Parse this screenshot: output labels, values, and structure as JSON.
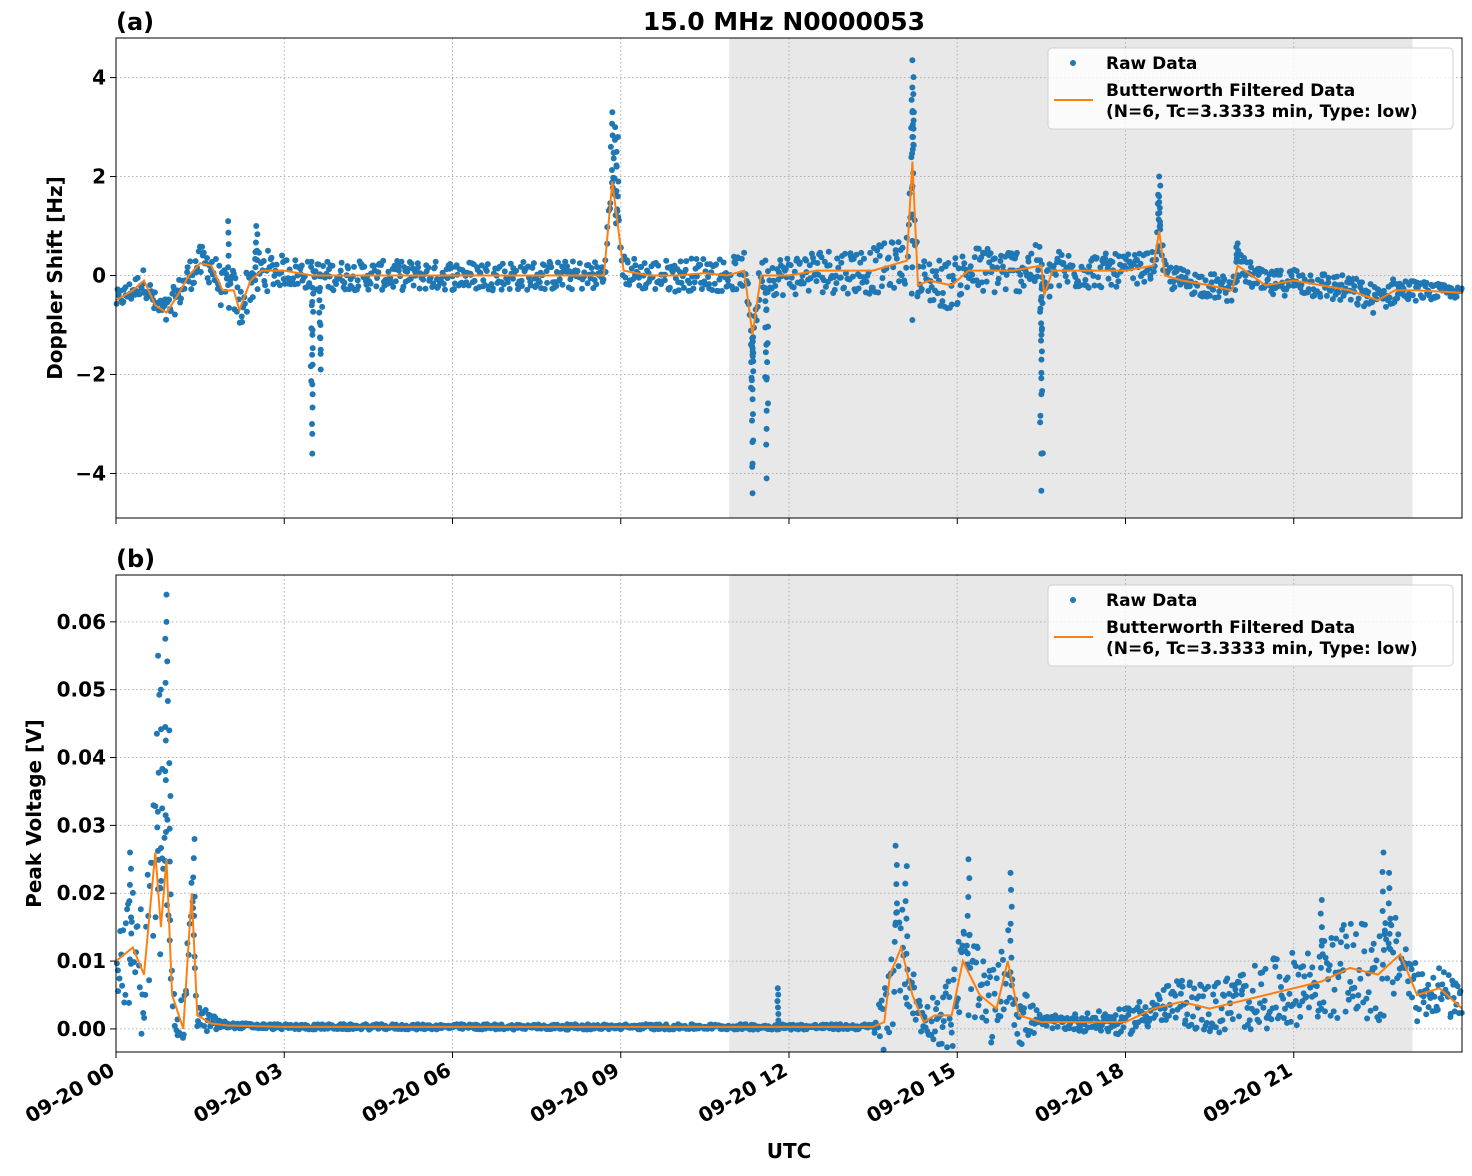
{
  "title": "15.0 MHz N0000053",
  "colors": {
    "raw": "#1f77b4",
    "filtered": "#ff7f0e",
    "shade": "#e8e8e8"
  },
  "chart_data": [
    {
      "type": "scatter+line",
      "panel_label": "(a)",
      "ylabel": "Doppler Shift [Hz]",
      "xlabel": "",
      "ylim": [
        -4.9,
        4.8
      ],
      "yticks": [
        -4,
        -2,
        0,
        2,
        4
      ],
      "ytick_labels": [
        "−4",
        "−2",
        "0",
        "2",
        "4"
      ],
      "grid": true,
      "legend": {
        "placement": "top-right",
        "entries": [
          "Raw Data",
          "Butterworth Filtered Data\n(N=6, Tc=3.3333 min, Type: low)"
        ],
        "line1": "Butterworth Filtered Data",
        "line2": "(N=6, Tc=3.3333 min, Type: low)"
      },
      "shaded_interval": [
        "10:56",
        "23:07"
      ],
      "series": [
        {
          "name": "Butterworth Filtered Data",
          "kind": "line",
          "points": [
            [
              "00:00",
              -0.5
            ],
            [
              "00:18",
              -0.3
            ],
            [
              "00:30",
              -0.1
            ],
            [
              "00:42",
              -0.6
            ],
            [
              "00:54",
              -0.75
            ],
            [
              "01:06",
              -0.4
            ],
            [
              "01:18",
              0.0
            ],
            [
              "01:30",
              0.25
            ],
            [
              "01:42",
              0.2
            ],
            [
              "01:54",
              -0.3
            ],
            [
              "02:06",
              -0.3
            ],
            [
              "02:12",
              -0.7
            ],
            [
              "02:24",
              -0.1
            ],
            [
              "02:36",
              0.1
            ],
            [
              "03:00",
              0.1
            ],
            [
              "03:30",
              0.0
            ],
            [
              "04:00",
              0.0
            ],
            [
              "05:00",
              0.0
            ],
            [
              "06:00",
              0.0
            ],
            [
              "07:00",
              0.0
            ],
            [
              "08:00",
              0.0
            ],
            [
              "08:42",
              0.0
            ],
            [
              "08:51",
              1.9
            ],
            [
              "08:57",
              1.0
            ],
            [
              "09:03",
              0.1
            ],
            [
              "09:30",
              0.0
            ],
            [
              "10:00",
              0.0
            ],
            [
              "10:30",
              0.05
            ],
            [
              "10:54",
              0.0
            ],
            [
              "11:12",
              0.1
            ],
            [
              "11:21",
              -1.2
            ],
            [
              "11:30",
              0.0
            ],
            [
              "12:00",
              0.0
            ],
            [
              "12:30",
              0.1
            ],
            [
              "13:00",
              0.1
            ],
            [
              "13:30",
              0.1
            ],
            [
              "13:48",
              0.2
            ],
            [
              "14:06",
              0.3
            ],
            [
              "14:12",
              2.3
            ],
            [
              "14:18",
              -0.2
            ],
            [
              "14:30",
              -0.1
            ],
            [
              "14:54",
              -0.2
            ],
            [
              "15:12",
              0.1
            ],
            [
              "15:30",
              0.1
            ],
            [
              "16:00",
              0.1
            ],
            [
              "16:30",
              0.2
            ],
            [
              "16:33",
              -0.4
            ],
            [
              "16:42",
              0.1
            ],
            [
              "17:00",
              0.1
            ],
            [
              "17:30",
              0.1
            ],
            [
              "18:00",
              0.1
            ],
            [
              "18:30",
              0.2
            ],
            [
              "18:36",
              0.9
            ],
            [
              "18:42",
              0.0
            ],
            [
              "19:00",
              -0.1
            ],
            [
              "19:30",
              -0.2
            ],
            [
              "19:54",
              -0.3
            ],
            [
              "20:00",
              0.2
            ],
            [
              "20:30",
              -0.2
            ],
            [
              "21:00",
              -0.1
            ],
            [
              "21:30",
              -0.2
            ],
            [
              "22:00",
              -0.3
            ],
            [
              "22:30",
              -0.5
            ],
            [
              "22:48",
              -0.3
            ],
            [
              "23:12",
              -0.3
            ],
            [
              "24:00",
              -0.35
            ]
          ]
        },
        {
          "name": "Raw Data",
          "kind": "scatter",
          "spread_about_filtered": [
            [
              "00:00",
              0.2
            ],
            [
              "01:30",
              0.35
            ],
            [
              "02:30",
              0.5
            ],
            [
              "03:00",
              0.3
            ],
            [
              "08:30",
              0.3
            ],
            [
              "11:00",
              0.35
            ],
            [
              "12:30",
              0.45
            ],
            [
              "14:00",
              0.5
            ],
            [
              "15:30",
              0.5
            ],
            [
              "17:00",
              0.4
            ],
            [
              "19:00",
              0.25
            ],
            [
              "22:30",
              0.3
            ],
            [
              "24:00",
              0.1
            ]
          ],
          "outliers": [
            [
              "02:00",
              1.1
            ],
            [
              "02:30",
              1.0
            ],
            [
              "03:30",
              -3.6
            ],
            [
              "03:30",
              -3.2
            ],
            [
              "03:30",
              -2.2
            ],
            [
              "03:39",
              -1.9
            ],
            [
              "03:39",
              -1.5
            ],
            [
              "08:51",
              3.3
            ],
            [
              "08:54",
              3.0
            ],
            [
              "08:57",
              2.8
            ],
            [
              "11:21",
              -4.4
            ],
            [
              "11:21",
              -3.8
            ],
            [
              "11:21",
              -2.3
            ],
            [
              "11:21",
              -1.6
            ],
            [
              "11:36",
              -4.1
            ],
            [
              "11:36",
              -3.1
            ],
            [
              "11:36",
              -2.1
            ],
            [
              "14:12",
              4.35
            ],
            [
              "14:12",
              3.8
            ],
            [
              "14:12",
              3.3
            ],
            [
              "14:12",
              -0.9
            ],
            [
              "16:30",
              -4.35
            ],
            [
              "16:30",
              -3.6
            ],
            [
              "16:30",
              -2.4
            ],
            [
              "16:30",
              -1.2
            ],
            [
              "18:36",
              2.0
            ],
            [
              "18:36",
              1.6
            ],
            [
              "20:00",
              0.65
            ]
          ]
        }
      ]
    },
    {
      "type": "scatter+line",
      "panel_label": "(b)",
      "ylabel": "Peak Voltage [V]",
      "xlabel": "UTC",
      "ylim": [
        -0.0034,
        0.0669
      ],
      "yticks": [
        0.0,
        0.01,
        0.02,
        0.03,
        0.04,
        0.05,
        0.06
      ],
      "ytick_labels": [
        "0.00",
        "0.01",
        "0.02",
        "0.03",
        "0.04",
        "0.05",
        "0.06"
      ],
      "xlim": [
        "09-20 00:00",
        "09-21 00:00"
      ],
      "xticks": [
        "00:00",
        "03:00",
        "06:00",
        "09:00",
        "12:00",
        "15:00",
        "18:00",
        "21:00"
      ],
      "xtick_labels": [
        "09-20 00",
        "09-20 03",
        "09-20 06",
        "09-20 09",
        "09-20 12",
        "09-20 15",
        "09-20 18",
        "09-20 21"
      ],
      "grid": true,
      "legend": {
        "placement": "top-right",
        "line1": "Butterworth Filtered Data",
        "line2": "(N=6, Tc=3.3333 min, Type: low)",
        "entries": [
          "Raw Data",
          "Butterworth Filtered Data\n(N=6, Tc=3.3333 min, Type: low)"
        ]
      },
      "shaded_interval": [
        "10:56",
        "23:07"
      ],
      "series": [
        {
          "name": "Butterworth Filtered Data",
          "kind": "line",
          "points": [
            [
              "00:00",
              0.01
            ],
            [
              "00:18",
              0.012
            ],
            [
              "00:30",
              0.008
            ],
            [
              "00:42",
              0.026
            ],
            [
              "00:48",
              0.015
            ],
            [
              "00:54",
              0.025
            ],
            [
              "01:00",
              0.005
            ],
            [
              "01:12",
              0.0
            ],
            [
              "01:21",
              0.02
            ],
            [
              "01:27",
              0.002
            ],
            [
              "01:42",
              0.0008
            ],
            [
              "02:00",
              0.0005
            ],
            [
              "03:00",
              0.0003
            ],
            [
              "06:00",
              0.0003
            ],
            [
              "09:00",
              0.0003
            ],
            [
              "12:00",
              0.0003
            ],
            [
              "13:30",
              0.0003
            ],
            [
              "13:42",
              0.001
            ],
            [
              "13:48",
              0.008
            ],
            [
              "14:00",
              0.012
            ],
            [
              "14:12",
              0.005
            ],
            [
              "14:24",
              0.001
            ],
            [
              "14:36",
              0.002
            ],
            [
              "14:54",
              0.002
            ],
            [
              "15:06",
              0.01
            ],
            [
              "15:24",
              0.005
            ],
            [
              "15:42",
              0.003
            ],
            [
              "15:54",
              0.01
            ],
            [
              "16:06",
              0.002
            ],
            [
              "16:30",
              0.001
            ],
            [
              "17:00",
              0.001
            ],
            [
              "18:00",
              0.001
            ],
            [
              "18:30",
              0.003
            ],
            [
              "19:00",
              0.004
            ],
            [
              "19:30",
              0.003
            ],
            [
              "20:00",
              0.004
            ],
            [
              "20:30",
              0.005
            ],
            [
              "21:00",
              0.006
            ],
            [
              "21:30",
              0.007
            ],
            [
              "22:00",
              0.009
            ],
            [
              "22:30",
              0.008
            ],
            [
              "22:54",
              0.011
            ],
            [
              "23:12",
              0.005
            ],
            [
              "23:36",
              0.006
            ],
            [
              "24:00",
              0.003
            ]
          ]
        },
        {
          "name": "Raw Data",
          "kind": "scatter",
          "spread_about_filtered": [
            [
              "00:00",
              0.006
            ],
            [
              "00:42",
              0.012
            ],
            [
              "01:00",
              0.004
            ],
            [
              "01:30",
              0.002
            ],
            [
              "02:00",
              0.0004
            ],
            [
              "13:30",
              0.0004
            ],
            [
              "13:48",
              0.009
            ],
            [
              "14:24",
              0.002
            ],
            [
              "15:00",
              0.007
            ],
            [
              "16:06",
              0.005
            ],
            [
              "16:30",
              0.0008
            ],
            [
              "18:00",
              0.002
            ],
            [
              "19:30",
              0.004
            ],
            [
              "21:30",
              0.006
            ],
            [
              "22:30",
              0.008
            ],
            [
              "23:12",
              0.004
            ],
            [
              "24:00",
              0.003
            ]
          ],
          "outliers": [
            [
              "00:15",
              0.026
            ],
            [
              "00:45",
              0.055
            ],
            [
              "00:48",
              0.05
            ],
            [
              "00:54",
              0.064
            ],
            [
              "00:54",
              0.06
            ],
            [
              "00:57",
              0.044
            ],
            [
              "01:24",
              0.028
            ],
            [
              "11:48",
              0.006
            ],
            [
              "13:54",
              0.027
            ],
            [
              "14:06",
              0.024
            ],
            [
              "15:12",
              0.025
            ],
            [
              "15:57",
              0.023
            ],
            [
              "21:30",
              0.019
            ],
            [
              "22:36",
              0.026
            ],
            [
              "22:42",
              0.023
            ]
          ]
        }
      ]
    }
  ]
}
